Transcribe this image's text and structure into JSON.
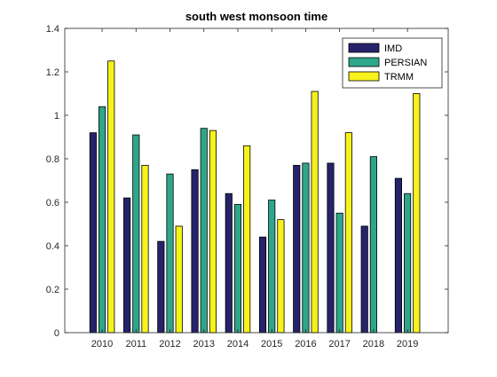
{
  "chart_data": {
    "type": "bar",
    "title": "south west monsoon time",
    "xlabel": "",
    "ylabel": "",
    "categories": [
      "2010",
      "2011",
      "2012",
      "2013",
      "2014",
      "2015",
      "2016",
      "2017",
      "2018",
      "2019"
    ],
    "xlim": [
      2008.9,
      2020.2
    ],
    "ylim": [
      0,
      1.4
    ],
    "yticks": [
      "0",
      "0.2",
      "0.4",
      "0.6",
      "0.8",
      "1",
      "1.2",
      "1.4"
    ],
    "grid": false,
    "legend_position": "top-right",
    "series": [
      {
        "name": "IMD",
        "color": "#26236b",
        "values": [
          0.92,
          0.62,
          0.42,
          0.75,
          0.64,
          0.44,
          0.77,
          0.78,
          0.49,
          0.71
        ]
      },
      {
        "name": "PERSIAN",
        "color": "#2ea68a",
        "values": [
          1.04,
          0.91,
          0.73,
          0.94,
          0.59,
          0.61,
          0.78,
          0.55,
          0.81,
          0.64
        ]
      },
      {
        "name": "TRMM",
        "color": "#f7f21c",
        "values": [
          1.25,
          0.77,
          0.49,
          0.93,
          0.86,
          0.52,
          1.11,
          0.92,
          0,
          1.1
        ]
      }
    ]
  }
}
